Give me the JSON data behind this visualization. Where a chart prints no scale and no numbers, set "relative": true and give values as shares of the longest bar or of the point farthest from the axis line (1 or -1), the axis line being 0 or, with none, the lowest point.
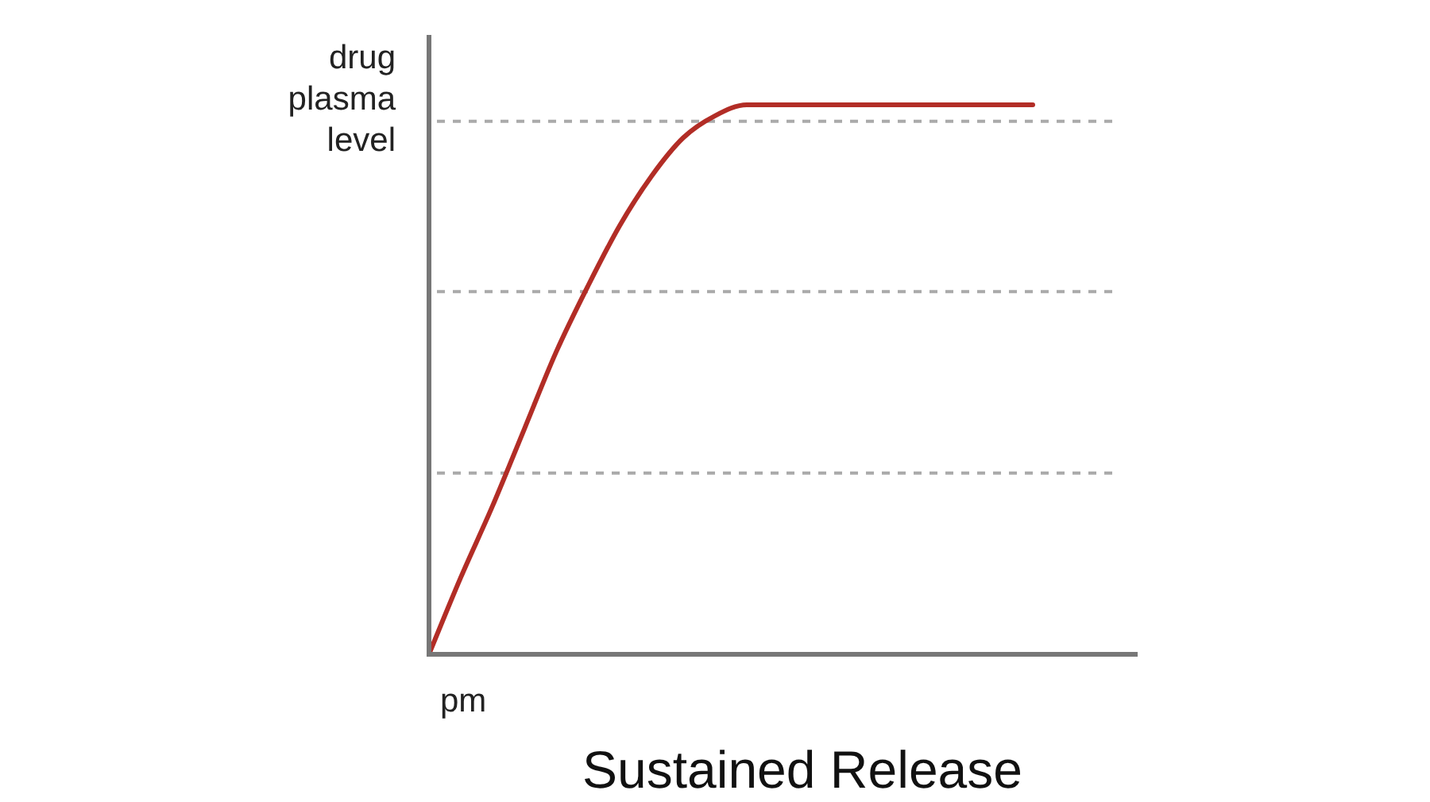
{
  "chart_data": {
    "type": "line",
    "title": "Sustained Release",
    "xlabel": "pm",
    "ylabel": "drug plasma level",
    "categories": [
      null,
      null,
      null,
      null,
      null,
      null,
      null,
      null,
      null,
      null,
      null,
      null,
      null,
      null,
      null,
      null,
      null,
      null,
      null,
      null,
      null,
      null,
      null
    ],
    "series": [
      {
        "color": "#b22d26",
        "values": [
          0,
          0.14,
          0.27,
          0.41,
          0.55,
          0.67,
          0.78,
          0.87,
          0.94,
          0.98,
          1,
          1,
          1,
          1,
          1,
          1,
          1,
          1,
          1,
          1,
          null,
          null,
          null
        ]
      }
    ],
    "relative": true,
    "marker": "none",
    "line_style": "solid",
    "ref_lines": [
      {
        "axis": "y",
        "value": 0.33,
        "color": "#aaaaaa",
        "line_style": "dashed"
      },
      {
        "axis": "y",
        "value": 0.66,
        "color": "#aaaaaa",
        "line_style": "dashed"
      },
      {
        "axis": "y",
        "value": 0.97,
        "color": "#aaaaaa",
        "line_style": "dashed"
      }
    ]
  }
}
